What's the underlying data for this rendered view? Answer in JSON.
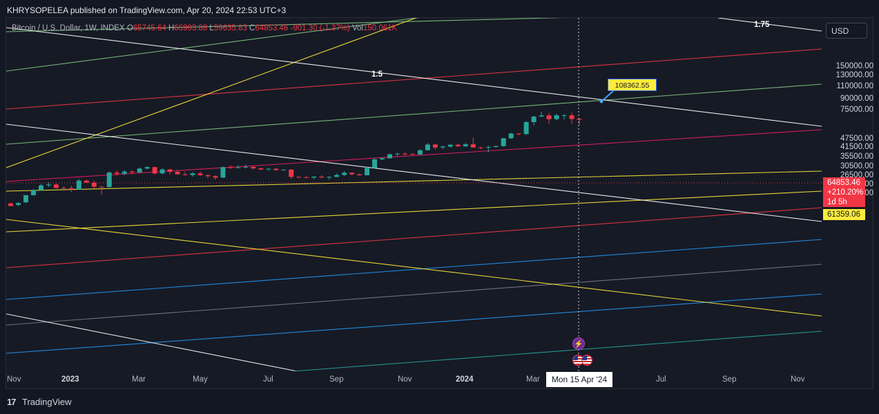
{
  "header": {
    "publisher": "KHRYSOPELEA published on TradingView.com, Apr 20, 2024 22:53 UTC+3"
  },
  "legend": {
    "symbol": "Bitcoin / U.S. Dollar, 1W, INDEX",
    "open_label": "O",
    "open": "65745.64",
    "high_label": "H",
    "high": "66903.88",
    "low_label": "L",
    "low": "59635.83",
    "close_label": "C",
    "close": "64853.46",
    "change": "-901.30 (-1.37%)",
    "vol_label": "Vol",
    "vol": "150.061K"
  },
  "currency": "USD",
  "price_tag": {
    "price": "64853.46",
    "change": "+210.20%",
    "countdown": "1d 5h"
  },
  "level_tag": "61359.06",
  "callout": "108362.55",
  "crosshair_date": "Mon 15 Apr '24",
  "fan_labels": {
    "a": "1.5",
    "b": "1.75"
  },
  "footer": {
    "brand": "TradingView",
    "logo_mark": "17"
  },
  "icons": {
    "event": "lightning-icon",
    "flags": "us-flag-icon"
  },
  "colors": {
    "bull": "#26a69a",
    "bear": "#f23645",
    "fib_yellow": "#ffeb3b",
    "line_white": "#ffffff"
  },
  "chart_data": {
    "type": "candlestick",
    "scale": "log",
    "y_ticks": [
      "150000.00",
      "130000.00",
      "110000.00",
      "90000.00",
      "75000.00",
      "47500.00",
      "41500.00",
      "35500.00",
      "30500.00",
      "26500.00",
      "22900.00",
      "19900.00"
    ],
    "x_ticks": [
      "Nov",
      "2023",
      "Mar",
      "May",
      "Jul",
      "Sep",
      "Nov",
      "2024",
      "Mar",
      "Jul",
      "Sep",
      "Nov"
    ],
    "candles": [
      {
        "o": 17100,
        "h": 17300,
        "l": 16500,
        "c": 16400
      },
      {
        "o": 16700,
        "h": 17500,
        "l": 16300,
        "c": 17200
      },
      {
        "o": 17400,
        "h": 19500,
        "l": 17200,
        "c": 19500
      },
      {
        "o": 19500,
        "h": 21500,
        "l": 19300,
        "c": 21200
      },
      {
        "o": 21100,
        "h": 23300,
        "l": 20900,
        "c": 22800
      },
      {
        "o": 22800,
        "h": 23900,
        "l": 22300,
        "c": 23100
      },
      {
        "o": 23100,
        "h": 23500,
        "l": 21600,
        "c": 21900
      },
      {
        "o": 21900,
        "h": 22400,
        "l": 21000,
        "c": 21800
      },
      {
        "o": 21800,
        "h": 22600,
        "l": 20500,
        "c": 21300
      },
      {
        "o": 21300,
        "h": 25200,
        "l": 21200,
        "c": 24600
      },
      {
        "o": 24600,
        "h": 25000,
        "l": 23600,
        "c": 23800
      },
      {
        "o": 23800,
        "h": 24400,
        "l": 21600,
        "c": 22300
      },
      {
        "o": 22300,
        "h": 22500,
        "l": 19600,
        "c": 22100
      },
      {
        "o": 22200,
        "h": 28500,
        "l": 22000,
        "c": 28000
      },
      {
        "o": 28000,
        "h": 28900,
        "l": 26600,
        "c": 27500
      },
      {
        "o": 27500,
        "h": 29100,
        "l": 26800,
        "c": 28400
      },
      {
        "o": 28400,
        "h": 29000,
        "l": 27300,
        "c": 28000
      },
      {
        "o": 28000,
        "h": 30400,
        "l": 27800,
        "c": 29800
      },
      {
        "o": 29800,
        "h": 31000,
        "l": 29400,
        "c": 30500
      },
      {
        "o": 30500,
        "h": 30700,
        "l": 27000,
        "c": 27600
      },
      {
        "o": 27600,
        "h": 29900,
        "l": 27200,
        "c": 29400
      },
      {
        "o": 29400,
        "h": 29600,
        "l": 27000,
        "c": 28300
      },
      {
        "o": 28300,
        "h": 29200,
        "l": 27100,
        "c": 27200
      },
      {
        "o": 27200,
        "h": 28400,
        "l": 26600,
        "c": 26900
      },
      {
        "o": 26900,
        "h": 28200,
        "l": 26200,
        "c": 27600
      },
      {
        "o": 27600,
        "h": 28500,
        "l": 26500,
        "c": 26800
      },
      {
        "o": 26800,
        "h": 27300,
        "l": 25600,
        "c": 26400
      },
      {
        "o": 26400,
        "h": 26800,
        "l": 24900,
        "c": 25800
      },
      {
        "o": 25800,
        "h": 30800,
        "l": 25600,
        "c": 30500
      },
      {
        "o": 30500,
        "h": 31400,
        "l": 29600,
        "c": 30100
      },
      {
        "o": 30100,
        "h": 31500,
        "l": 30000,
        "c": 30400
      },
      {
        "o": 30400,
        "h": 31800,
        "l": 29800,
        "c": 30600
      },
      {
        "o": 30600,
        "h": 31000,
        "l": 29300,
        "c": 29900
      },
      {
        "o": 29900,
        "h": 30300,
        "l": 29100,
        "c": 29400
      },
      {
        "o": 29400,
        "h": 30100,
        "l": 28800,
        "c": 29700
      },
      {
        "o": 29700,
        "h": 30000,
        "l": 28700,
        "c": 29100
      },
      {
        "o": 29100,
        "h": 29600,
        "l": 29000,
        "c": 29300
      },
      {
        "o": 29300,
        "h": 29500,
        "l": 25200,
        "c": 26100
      },
      {
        "o": 26100,
        "h": 26400,
        "l": 25700,
        "c": 26000
      },
      {
        "o": 26000,
        "h": 26300,
        "l": 25500,
        "c": 25800
      },
      {
        "o": 25800,
        "h": 26400,
        "l": 25100,
        "c": 26200
      },
      {
        "o": 26200,
        "h": 26900,
        "l": 25400,
        "c": 25900
      },
      {
        "o": 25900,
        "h": 26400,
        "l": 24900,
        "c": 26100
      },
      {
        "o": 26100,
        "h": 27500,
        "l": 26000,
        "c": 26900
      },
      {
        "o": 26900,
        "h": 28600,
        "l": 26500,
        "c": 27900
      },
      {
        "o": 27900,
        "h": 28000,
        "l": 26700,
        "c": 27200
      },
      {
        "o": 27200,
        "h": 27500,
        "l": 26600,
        "c": 26800
      },
      {
        "o": 26800,
        "h": 30600,
        "l": 26700,
        "c": 30100
      },
      {
        "o": 30100,
        "h": 35300,
        "l": 29900,
        "c": 34500
      },
      {
        "o": 34500,
        "h": 35600,
        "l": 34000,
        "c": 35100
      },
      {
        "o": 35100,
        "h": 37900,
        "l": 34900,
        "c": 37400
      },
      {
        "o": 37400,
        "h": 38400,
        "l": 36100,
        "c": 37800
      },
      {
        "o": 37800,
        "h": 38500,
        "l": 36700,
        "c": 37700
      },
      {
        "o": 37700,
        "h": 38000,
        "l": 37000,
        "c": 37300
      },
      {
        "o": 37300,
        "h": 40600,
        "l": 37100,
        "c": 39900
      },
      {
        "o": 39900,
        "h": 44800,
        "l": 39800,
        "c": 43700
      },
      {
        "o": 43700,
        "h": 44200,
        "l": 40300,
        "c": 41700
      },
      {
        "o": 41700,
        "h": 42900,
        "l": 40600,
        "c": 42300
      },
      {
        "o": 42300,
        "h": 43800,
        "l": 41700,
        "c": 43600
      },
      {
        "o": 43600,
        "h": 44400,
        "l": 42100,
        "c": 42500
      },
      {
        "o": 42500,
        "h": 45000,
        "l": 42000,
        "c": 43900
      },
      {
        "o": 43900,
        "h": 48900,
        "l": 41800,
        "c": 41700
      },
      {
        "o": 41700,
        "h": 42300,
        "l": 40500,
        "c": 41600
      },
      {
        "o": 41600,
        "h": 42800,
        "l": 38600,
        "c": 42000
      },
      {
        "o": 42000,
        "h": 43100,
        "l": 41800,
        "c": 42600
      },
      {
        "o": 42600,
        "h": 48500,
        "l": 42300,
        "c": 48300
      },
      {
        "o": 48300,
        "h": 52800,
        "l": 47900,
        "c": 52100
      },
      {
        "o": 52100,
        "h": 52400,
        "l": 50600,
        "c": 51700
      },
      {
        "o": 51700,
        "h": 63500,
        "l": 50900,
        "c": 62500
      },
      {
        "o": 62500,
        "h": 69000,
        "l": 59200,
        "c": 68300
      },
      {
        "o": 68300,
        "h": 73800,
        "l": 68000,
        "c": 69500
      },
      {
        "o": 69500,
        "h": 72400,
        "l": 60800,
        "c": 65500
      },
      {
        "o": 65500,
        "h": 71500,
        "l": 64500,
        "c": 69700
      },
      {
        "o": 69700,
        "h": 71200,
        "l": 65100,
        "c": 69700
      },
      {
        "o": 69700,
        "h": 72700,
        "l": 60700,
        "c": 65700
      },
      {
        "o": 65745.64,
        "h": 66903.88,
        "l": 59635.83,
        "c": 64853.46
      }
    ],
    "overlay_levels": {
      "callout_value": 108362.55,
      "level_tag_value": 61359.06,
      "fan_labels": [
        "1.5",
        "1.75"
      ]
    }
  }
}
